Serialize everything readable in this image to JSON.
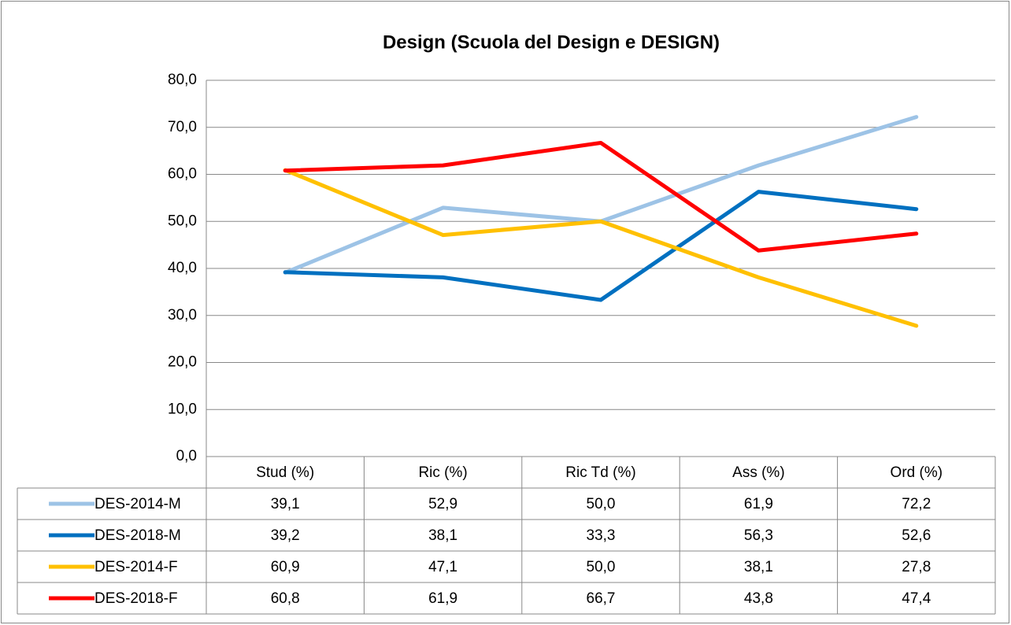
{
  "chart_data": {
    "type": "line",
    "title": "Design (Scuola del Design e DESIGN)",
    "categories": [
      "Stud (%)",
      "Ric (%)",
      "Ric Td (%)",
      "Ass (%)",
      "Ord (%)"
    ],
    "series": [
      {
        "name": "DES-2014-M",
        "color": "#9dc3e6",
        "values": [
          39.1,
          52.9,
          50.0,
          61.9,
          72.2
        ],
        "value_labels": [
          "39,1",
          "52,9",
          "50,0",
          "61,9",
          "72,2"
        ]
      },
      {
        "name": "DES-2018-M",
        "color": "#0070c0",
        "values": [
          39.2,
          38.1,
          33.3,
          56.3,
          52.6
        ],
        "value_labels": [
          "39,2",
          "38,1",
          "33,3",
          "56,3",
          "52,6"
        ]
      },
      {
        "name": "DES-2014-F",
        "color": "#ffc000",
        "values": [
          60.9,
          47.1,
          50.0,
          38.1,
          27.8
        ],
        "value_labels": [
          "60,9",
          "47,1",
          "50,0",
          "38,1",
          "27,8"
        ]
      },
      {
        "name": "DES-2018-F",
        "color": "#ff0000",
        "values": [
          60.8,
          61.9,
          66.7,
          43.8,
          47.4
        ],
        "value_labels": [
          "60,8",
          "61,9",
          "66,7",
          "43,8",
          "47,4"
        ]
      }
    ],
    "ylim": [
      0,
      80
    ],
    "yticks": [
      {
        "value": 0,
        "label": "0,0"
      },
      {
        "value": 10,
        "label": "10,0"
      },
      {
        "value": 20,
        "label": "20,0"
      },
      {
        "value": 30,
        "label": "30,0"
      },
      {
        "value": 40,
        "label": "40,0"
      },
      {
        "value": 50,
        "label": "50,0"
      },
      {
        "value": 60,
        "label": "60,0"
      },
      {
        "value": 70,
        "label": "70,0"
      },
      {
        "value": 80,
        "label": "80,0"
      }
    ],
    "grid": true
  }
}
